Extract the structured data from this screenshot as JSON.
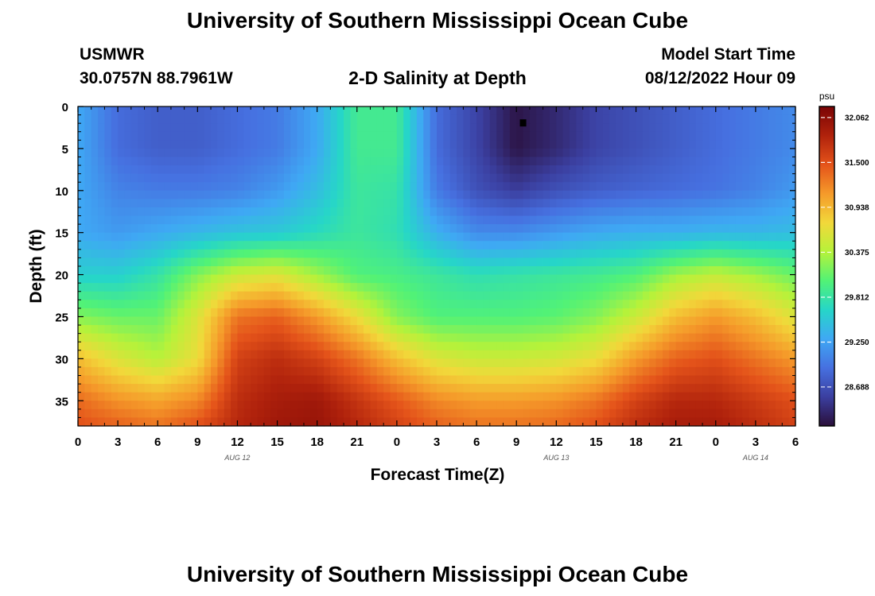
{
  "header": {
    "title": "University of Southern Mississippi Ocean Cube",
    "station": "USMWR",
    "coords": "30.0757N  88.7961W",
    "plot_title": "2-D Salinity at Depth",
    "model_start_label": "Model Start Time",
    "model_start_value": "08/12/2022 Hour 09"
  },
  "footer": {
    "title": "University of Southern Mississippi Ocean Cube"
  },
  "chart_data": {
    "type": "heatmap",
    "title": "2-D Salinity at Depth",
    "xlabel": "Forecast Time(Z)",
    "ylabel": "Depth (ft)",
    "x_ticks": [
      "0",
      "3",
      "6",
      "9",
      "12",
      "15",
      "18",
      "21",
      "0",
      "3",
      "6",
      "9",
      "12",
      "15",
      "18",
      "21",
      "0",
      "3",
      "6"
    ],
    "x_range_hours": [
      0,
      54
    ],
    "date_labels": [
      {
        "label": "AUG 12",
        "hour": 12
      },
      {
        "label": "AUG 13",
        "hour": 36
      },
      {
        "label": "AUG 14",
        "hour": 51
      }
    ],
    "y_ticks": [
      "0",
      "5",
      "10",
      "15",
      "20",
      "25",
      "30",
      "35"
    ],
    "ylim": [
      38,
      0
    ],
    "colorbar": {
      "unit": "psu",
      "ticks": [
        "32.062",
        "31.500",
        "30.938",
        "30.375",
        "29.812",
        "29.250",
        "28.688"
      ],
      "min": 28.2,
      "max": 32.2,
      "colors": [
        "#2a0f3a",
        "#3b3fa0",
        "#4670e0",
        "#3fa8f4",
        "#26d6c8",
        "#52f276",
        "#b6f23a",
        "#f2d83a",
        "#f59a2a",
        "#e4531a",
        "#b0220c",
        "#7a0405"
      ]
    },
    "marker": {
      "hour": 33.5,
      "depth": 2
    },
    "salinity_grid": {
      "hours": [
        0,
        3,
        6,
        9,
        12,
        15,
        18,
        21,
        24,
        27,
        30,
        33,
        36,
        39,
        42,
        45,
        48,
        51,
        54
      ],
      "depths": [
        0,
        5,
        10,
        15,
        20,
        25,
        30,
        35,
        38
      ],
      "values": [
        [
          29.3,
          28.9,
          28.8,
          28.8,
          28.9,
          29.0,
          29.3,
          29.9,
          29.9,
          28.9,
          28.6,
          28.25,
          28.4,
          28.6,
          28.7,
          28.8,
          28.9,
          29.0,
          29.1
        ],
        [
          29.3,
          28.9,
          28.8,
          28.8,
          28.9,
          29.0,
          29.3,
          29.9,
          29.9,
          28.9,
          28.6,
          28.25,
          28.4,
          28.6,
          28.7,
          28.8,
          28.9,
          29.0,
          29.1
        ],
        [
          29.3,
          29.05,
          29.0,
          29.0,
          29.05,
          29.2,
          29.45,
          29.85,
          29.8,
          29.0,
          28.7,
          28.55,
          28.7,
          28.8,
          28.85,
          28.9,
          28.95,
          29.05,
          29.2
        ],
        [
          29.3,
          29.2,
          29.3,
          29.4,
          29.5,
          29.55,
          29.7,
          29.85,
          29.75,
          29.35,
          29.1,
          29.1,
          29.2,
          29.3,
          29.35,
          29.35,
          29.4,
          29.4,
          29.45
        ],
        [
          29.6,
          29.6,
          29.8,
          30.2,
          30.5,
          30.6,
          30.3,
          30.0,
          29.95,
          29.85,
          29.75,
          29.8,
          29.85,
          29.9,
          30.0,
          30.3,
          30.45,
          30.3,
          30.1
        ],
        [
          30.2,
          30.1,
          30.1,
          30.6,
          31.3,
          31.4,
          31.1,
          30.7,
          30.2,
          30.0,
          30.0,
          30.0,
          30.05,
          30.2,
          30.5,
          30.9,
          31.1,
          30.9,
          30.6
        ],
        [
          30.9,
          30.6,
          30.4,
          30.7,
          31.6,
          31.75,
          31.6,
          31.3,
          30.9,
          30.6,
          30.5,
          30.5,
          30.55,
          30.7,
          31.1,
          31.4,
          31.5,
          31.3,
          31.1
        ],
        [
          31.35,
          31.15,
          31.05,
          31.2,
          31.75,
          31.9,
          31.95,
          31.7,
          31.45,
          31.2,
          31.1,
          31.1,
          31.15,
          31.3,
          31.6,
          31.8,
          31.8,
          31.65,
          31.5
        ],
        [
          31.5,
          31.4,
          31.3,
          31.5,
          31.8,
          31.95,
          32.0,
          31.8,
          31.6,
          31.4,
          31.3,
          31.3,
          31.35,
          31.5,
          31.75,
          31.9,
          31.9,
          31.75,
          31.6
        ]
      ]
    }
  }
}
